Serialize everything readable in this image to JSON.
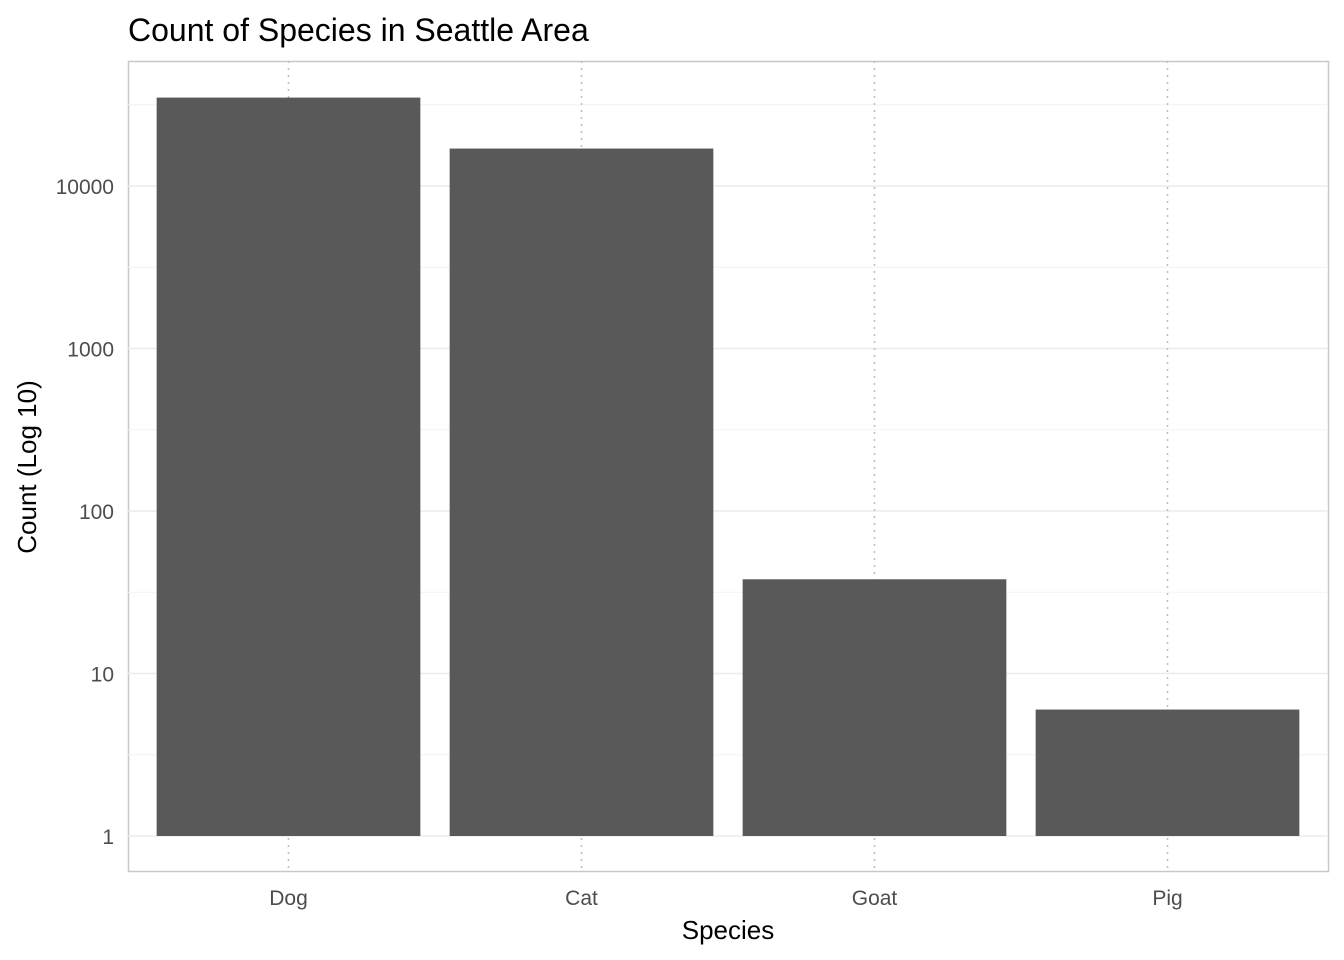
{
  "chart_data": {
    "type": "bar",
    "title": "Count of Species in Seattle Area",
    "xlabel": "Species",
    "ylabel": "Count (Log 10)",
    "y_scale": "log10",
    "categories": [
      "Dog",
      "Cat",
      "Goat",
      "Pig"
    ],
    "values": [
      35000,
      17000,
      38,
      6
    ],
    "ylim": [
      0.8,
      60000
    ],
    "yticks": [
      1,
      10,
      100,
      1000,
      10000
    ],
    "ytick_labels": [
      "1",
      "10",
      "100",
      "1000",
      "10000"
    ],
    "bar_baseline": 1,
    "grid": true,
    "legend": "none",
    "bar_color": "#595959",
    "gridline_color": "#ebebeb",
    "panel_border_color": "#c8c8c8"
  }
}
